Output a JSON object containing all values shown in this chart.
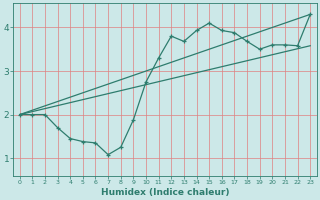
{
  "xlabel": "Humidex (Indice chaleur)",
  "ylabel": "",
  "bg_color": "#cce8e8",
  "line_color": "#2e7d6e",
  "grid_color_v": "#e08080",
  "grid_color_h": "#e08080",
  "xlim": [
    -0.5,
    23.5
  ],
  "ylim": [
    0.6,
    4.55
  ],
  "yticks": [
    1,
    2,
    3,
    4
  ],
  "xticks": [
    0,
    1,
    2,
    3,
    4,
    5,
    6,
    7,
    8,
    9,
    10,
    11,
    12,
    13,
    14,
    15,
    16,
    17,
    18,
    19,
    20,
    21,
    22,
    23
  ],
  "curve1_x": [
    0,
    1,
    2,
    3,
    4,
    5,
    6,
    7,
    8,
    9,
    10,
    11,
    12,
    13,
    14,
    15,
    16,
    17,
    18,
    19,
    20,
    21,
    22,
    23
  ],
  "curve1_y": [
    2.0,
    2.0,
    2.0,
    1.7,
    1.45,
    1.38,
    1.35,
    1.08,
    1.25,
    1.88,
    2.75,
    3.3,
    3.8,
    3.68,
    3.93,
    4.1,
    3.93,
    3.88,
    3.68,
    3.5,
    3.6,
    3.6,
    3.58,
    4.3
  ],
  "curve2_x": [
    0,
    23
  ],
  "curve2_y": [
    2.0,
    4.3
  ],
  "curve3_x": [
    0,
    23
  ],
  "curve3_y": [
    2.0,
    3.58
  ]
}
